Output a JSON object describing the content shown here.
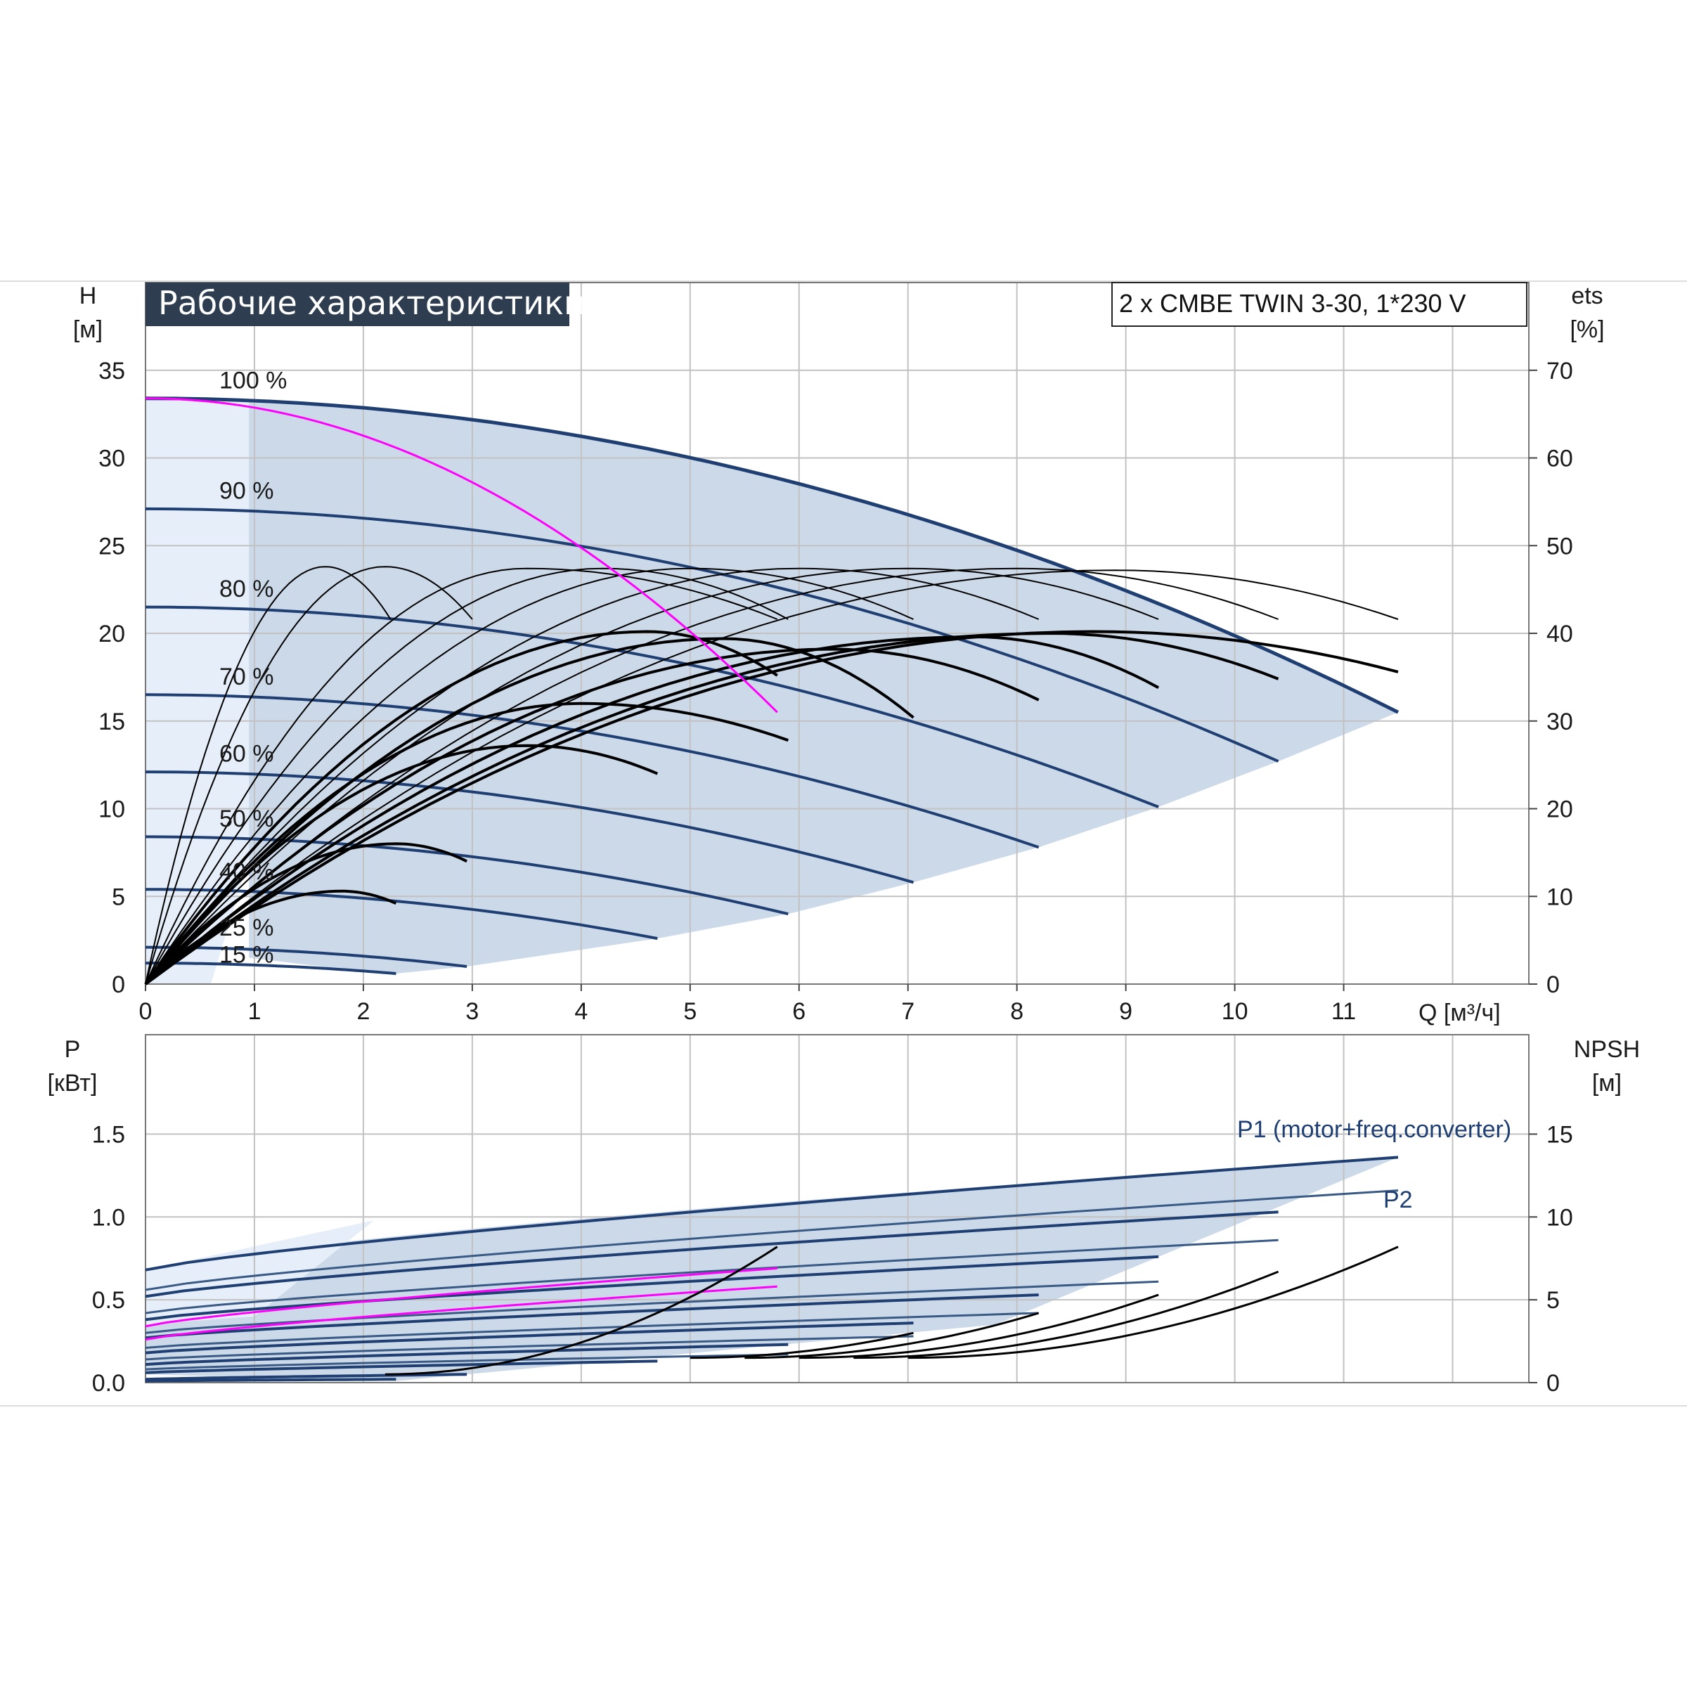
{
  "chart_data": [
    {
      "type": "line",
      "title": "Рабочие характеристики",
      "model": "2 x CMBE TWIN 3-30, 1*230 V",
      "y_label": "H",
      "y_unit": "[м]",
      "y2_label": "ets",
      "y2_unit": "[%]",
      "x_label": "Q [м³/ч]",
      "x_ticks": [
        "0",
        "1",
        "2",
        "3",
        "4",
        "5",
        "6",
        "7",
        "8",
        "9",
        "10",
        "11"
      ],
      "y_ticks": [
        "0",
        "5",
        "10",
        "15",
        "20",
        "25",
        "30",
        "35"
      ],
      "y2_ticks": [
        "0",
        "10",
        "20",
        "30",
        "40",
        "50",
        "60",
        "70"
      ],
      "xlim": [
        0,
        12.7
      ],
      "ylim": [
        0,
        40
      ],
      "grid": true,
      "colors": {
        "head": "#1f3f73",
        "efficiency": "#000000",
        "magenta": "#ff00ff",
        "area": "#c9d7e8",
        "area_light": "#e6eff9"
      },
      "head_curves": [
        {
          "label": "100 %",
          "h0": 33.4,
          "qmax": 11.5,
          "hend": 15.5
        },
        {
          "label": "90 %",
          "h0": 27.1,
          "qmax": 10.4,
          "hend": 12.7
        },
        {
          "label": "80 %",
          "h0": 21.5,
          "qmax": 9.3,
          "hend": 10.1
        },
        {
          "label": "70 %",
          "h0": 16.5,
          "qmax": 8.2,
          "hend": 7.8
        },
        {
          "label": "60 %",
          "h0": 12.1,
          "qmax": 7.05,
          "hend": 5.8
        },
        {
          "label": "50 %",
          "h0": 8.4,
          "qmax": 5.9,
          "hend": 4.0
        },
        {
          "label": "40 %",
          "h0": 5.4,
          "qmax": 4.7,
          "hend": 2.6
        },
        {
          "label": "25 %",
          "h0": 2.1,
          "qmax": 2.95,
          "hend": 1.0
        },
        {
          "label": "15 %",
          "h0": 1.2,
          "qmax": 2.3,
          "hend": 0.6
        }
      ],
      "efficiency_thin_curves": [
        {
          "qpk": 1.65,
          "hpk": 23.8,
          "qend": 2.25,
          "hend": 20.8
        },
        {
          "qpk": 2.2,
          "hpk": 23.8,
          "qend": 3.0,
          "hend": 20.8
        },
        {
          "qpk": 3.5,
          "hpk": 23.7,
          "qend": 5.8,
          "hend": 20.8
        },
        {
          "qpk": 4.2,
          "hpk": 23.7,
          "qend": 5.9,
          "hend": 20.8
        },
        {
          "qpk": 5.0,
          "hpk": 23.7,
          "qend": 7.05,
          "hend": 20.8
        },
        {
          "qpk": 6.0,
          "hpk": 23.7,
          "qend": 8.2,
          "hend": 20.8
        },
        {
          "qpk": 7.0,
          "hpk": 23.7,
          "qend": 9.3,
          "hend": 20.8
        },
        {
          "qpk": 8.0,
          "hpk": 23.7,
          "qend": 10.4,
          "hend": 20.8
        },
        {
          "qpk": 8.9,
          "hpk": 23.6,
          "qend": 11.5,
          "hend": 20.8
        }
      ],
      "efficiency_thick_curves": [
        {
          "qpk": 4.6,
          "hpk": 20.1,
          "qend": 5.8,
          "hend": 17.6
        },
        {
          "qpk": 5.3,
          "hpk": 19.7,
          "qend": 7.05,
          "hend": 15.2
        },
        {
          "qpk": 6.3,
          "hpk": 19.1,
          "qend": 8.2,
          "hend": 16.2
        },
        {
          "qpk": 7.6,
          "hpk": 19.8,
          "qend": 9.3,
          "hend": 16.9
        },
        {
          "qpk": 8.3,
          "hpk": 20.0,
          "qend": 10.4,
          "hend": 17.4
        },
        {
          "qpk": 8.7,
          "hpk": 20.1,
          "qend": 11.5,
          "hend": 17.8
        },
        {
          "qpk": 4.0,
          "hpk": 16.0,
          "qend": 5.9,
          "hend": 13.9
        },
        {
          "qpk": 3.5,
          "hpk": 13.6,
          "qend": 4.7,
          "hend": 12.0
        },
        {
          "qpk": 2.3,
          "hpk": 8.0,
          "qend": 2.95,
          "hend": 7.0
        },
        {
          "qpk": 1.8,
          "hpk": 5.3,
          "qend": 2.3,
          "hend": 4.6
        }
      ],
      "magenta_curve": {
        "h0": 33.4,
        "qend": 5.8,
        "hend": 15.5
      }
    },
    {
      "type": "line",
      "y_label": "P",
      "y_unit": "[кВт]",
      "y2_label": "NPSH",
      "y2_unit": "[м]",
      "y_ticks": [
        "0.0",
        "0.5",
        "1.0",
        "1.5"
      ],
      "y2_ticks": [
        "0",
        "5",
        "10",
        "15"
      ],
      "ylim": [
        0,
        2.1
      ],
      "y2lim": [
        0,
        21
      ],
      "grid": true,
      "series_labels": {
        "p1": "P1 (motor+freq.converter)",
        "p2": "P2"
      },
      "p1_curves": [
        {
          "qend": 11.5,
          "p0": 0.68,
          "pend": 1.36
        },
        {
          "qend": 10.4,
          "p0": 0.52,
          "pend": 1.03
        },
        {
          "qend": 9.3,
          "p0": 0.38,
          "pend": 0.76
        },
        {
          "qend": 8.2,
          "p0": 0.27,
          "pend": 0.53
        },
        {
          "qend": 7.05,
          "p0": 0.18,
          "pend": 0.36
        },
        {
          "qend": 5.9,
          "p0": 0.11,
          "pend": 0.23
        },
        {
          "qend": 4.7,
          "p0": 0.06,
          "pend": 0.13
        },
        {
          "qend": 2.95,
          "p0": 0.02,
          "pend": 0.05
        },
        {
          "qend": 2.3,
          "p0": 0.01,
          "pend": 0.02
        }
      ],
      "p2_curves": [
        {
          "qend": 11.5,
          "p0": 0.56,
          "pend": 1.16
        },
        {
          "qend": 10.4,
          "p0": 0.42,
          "pend": 0.86
        },
        {
          "qend": 9.3,
          "p0": 0.3,
          "pend": 0.61
        },
        {
          "qend": 8.2,
          "p0": 0.21,
          "pend": 0.42
        },
        {
          "qend": 7.05,
          "p0": 0.14,
          "pend": 0.28
        },
        {
          "qend": 5.9,
          "p0": 0.08,
          "pend": 0.17
        }
      ],
      "magenta_power": [
        {
          "qend": 5.8,
          "p0": 0.34,
          "pend": 0.69
        },
        {
          "qend": 5.8,
          "p0": 0.26,
          "pend": 0.58
        }
      ],
      "npsh_curves": [
        {
          "q0": 2.2,
          "qend": 5.8,
          "n0": 0.5,
          "nend": 8.2
        },
        {
          "q0": 5.0,
          "qend": 7.05,
          "n0": 1.5,
          "nend": 3.0
        },
        {
          "q0": 5.5,
          "qend": 8.2,
          "n0": 1.5,
          "nend": 4.2
        },
        {
          "q0": 6.0,
          "qend": 9.3,
          "n0": 1.5,
          "nend": 5.3
        },
        {
          "q0": 6.5,
          "qend": 10.4,
          "n0": 1.5,
          "nend": 6.7
        },
        {
          "q0": 7.0,
          "qend": 11.5,
          "n0": 1.5,
          "nend": 8.2
        }
      ]
    }
  ]
}
